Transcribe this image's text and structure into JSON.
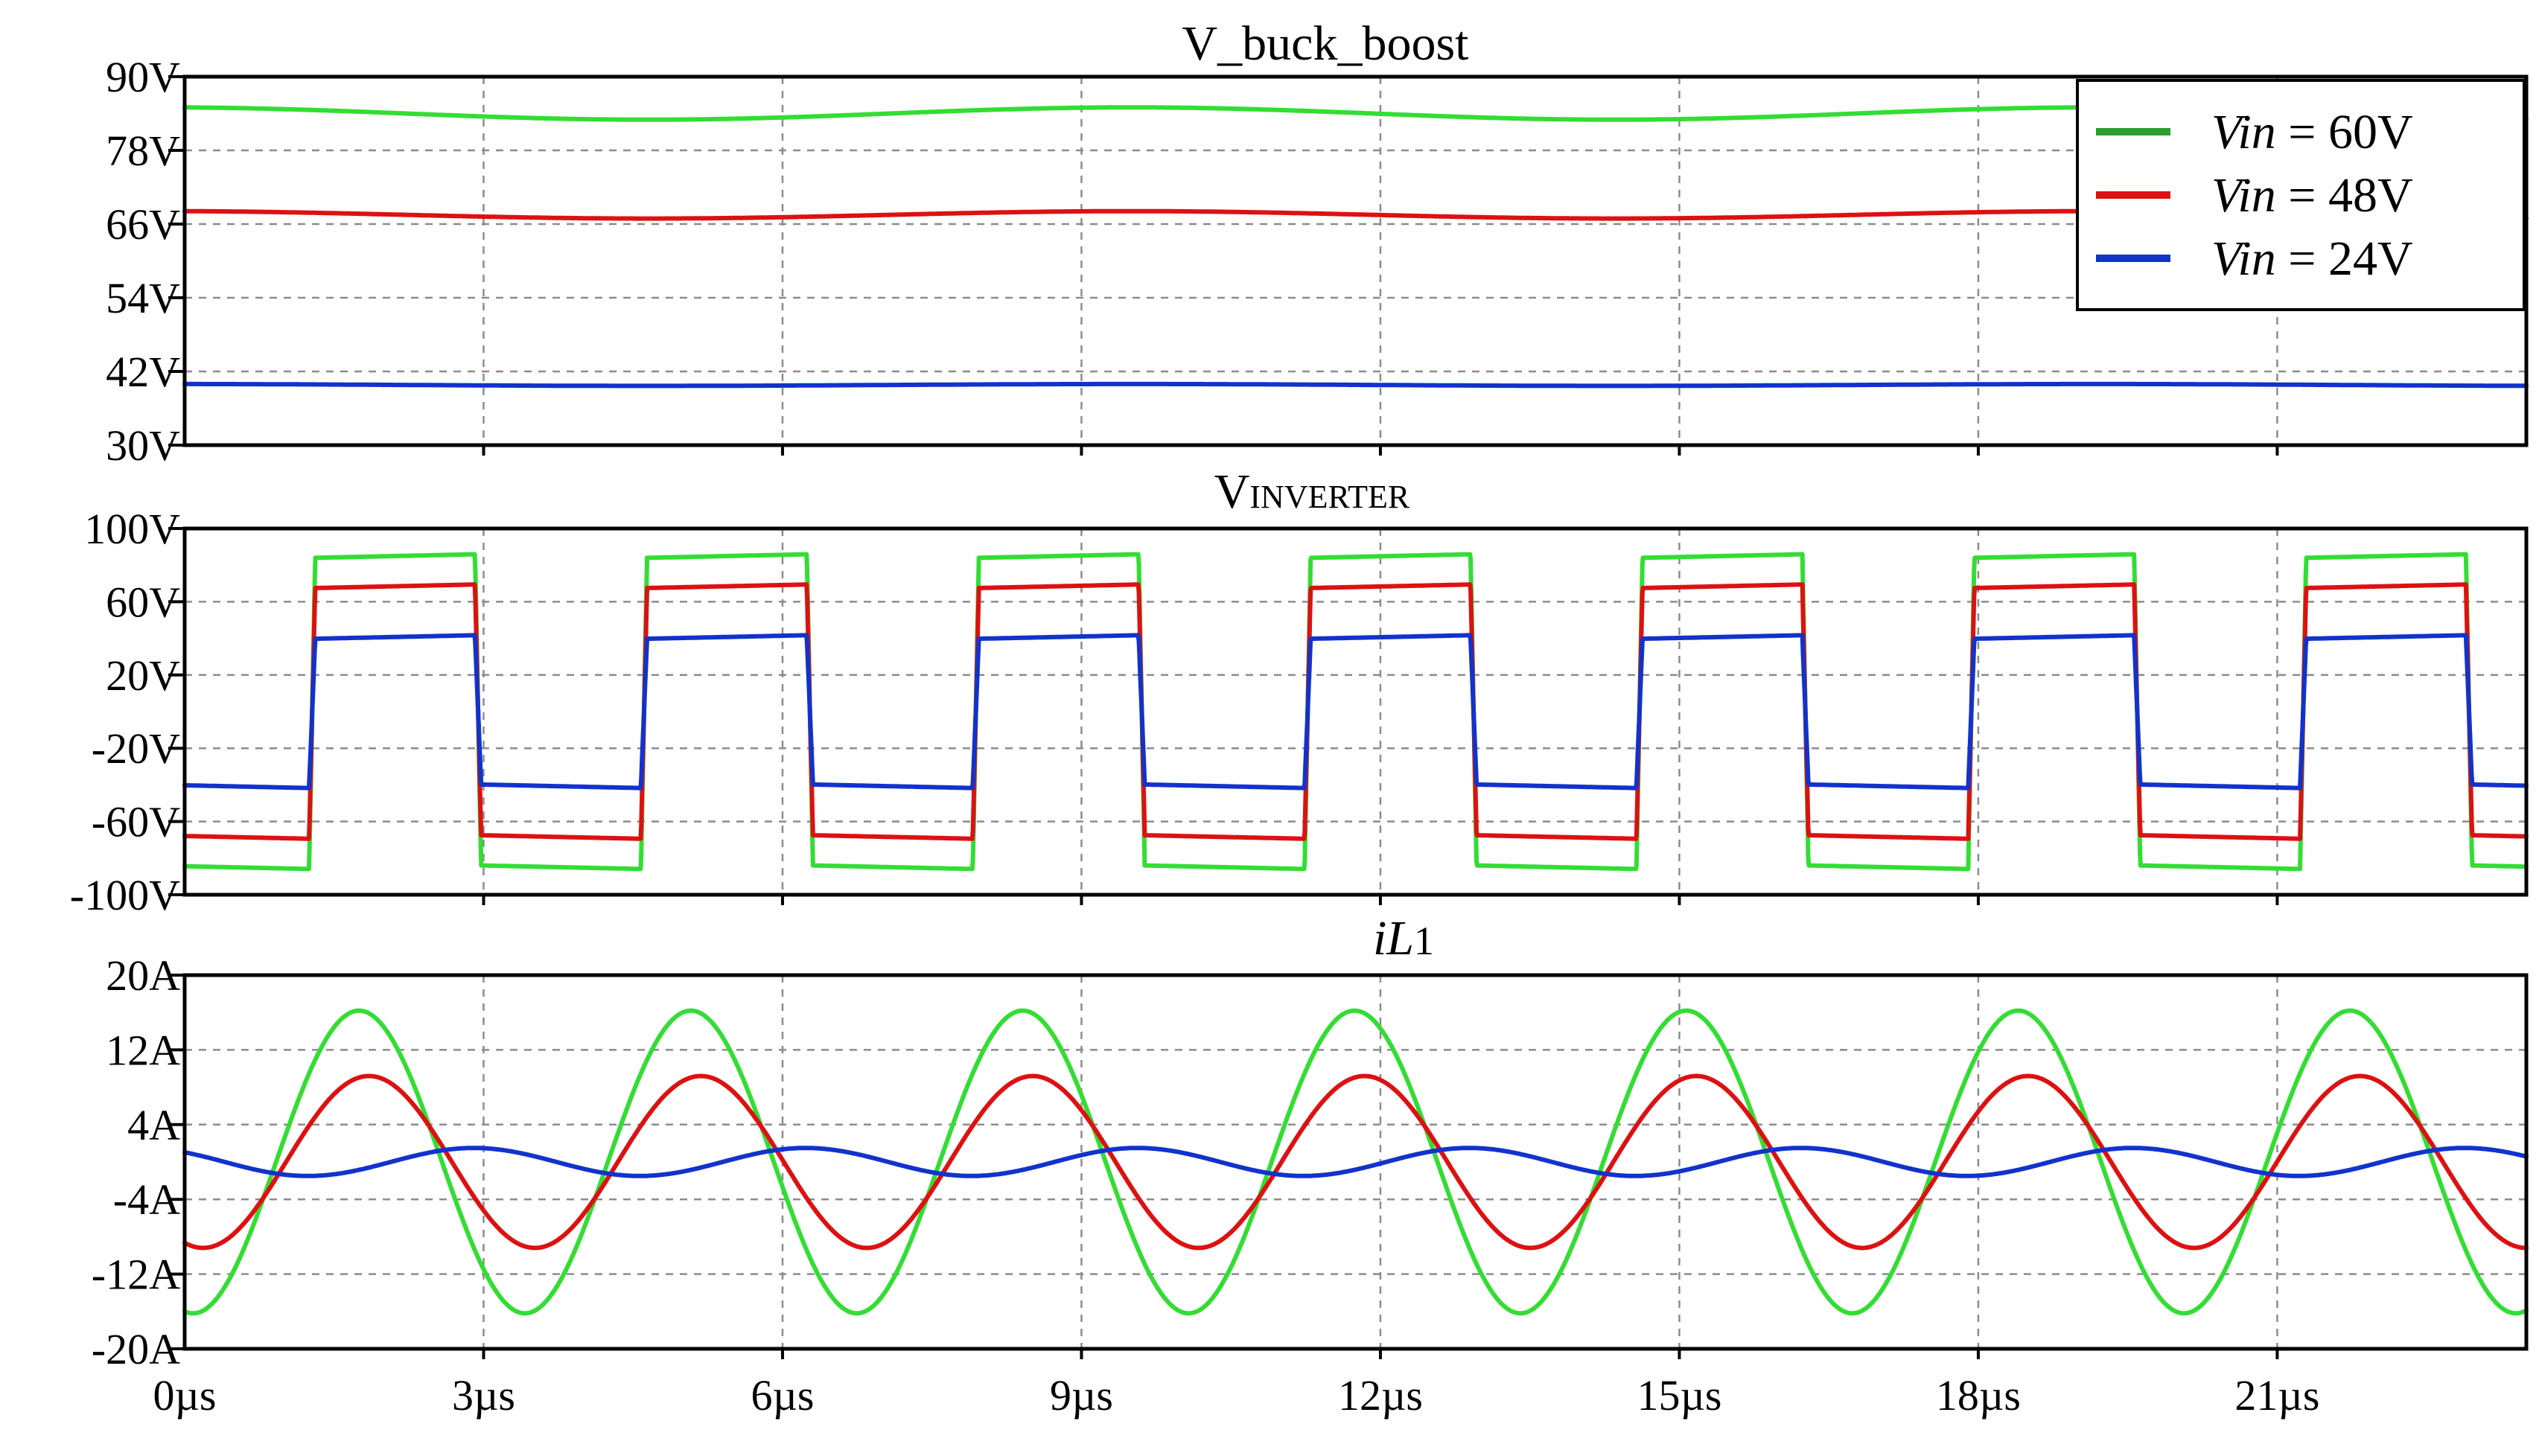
{
  "colors": {
    "green": "#33dd33",
    "red": "#dd1111",
    "blue": "#1133cc",
    "legend_green": "#2e9e2e"
  },
  "legend": {
    "entries": [
      {
        "var": "Vin",
        "rest": " = 60V",
        "color_key": "legend_green"
      },
      {
        "var": "Vin",
        "rest": " = 48V",
        "color_key": "red"
      },
      {
        "var": "Vin",
        "rest": " = 24V",
        "color_key": "blue"
      }
    ]
  },
  "chart_data": [
    {
      "type": "line",
      "title": "V_buck_boost",
      "xlim": [
        0,
        23.5
      ],
      "ylim": [
        30,
        90
      ],
      "yticks": [
        90,
        78,
        66,
        54,
        42,
        30
      ],
      "ytick_labels": [
        "90V",
        "78V",
        "66V",
        "54V",
        "42V",
        "30V"
      ],
      "xticks": [
        0,
        3,
        6,
        9,
        12,
        15,
        18,
        21
      ],
      "series": [
        {
          "name": "Vin = 60V",
          "color_key": "green",
          "kind": "dc",
          "mean": 84,
          "ripple": 1.0,
          "period": 9.7
        },
        {
          "name": "Vin = 48V",
          "color_key": "red",
          "kind": "dc",
          "mean": 67.5,
          "ripple": 0.6,
          "period": 9.7
        },
        {
          "name": "Vin = 24V",
          "color_key": "blue",
          "kind": "dc",
          "mean": 39.8,
          "ripple": 0.15,
          "period": 9.7
        }
      ]
    },
    {
      "type": "line",
      "title_main": "V",
      "title_sub": "INVERTER",
      "xlim": [
        0,
        23.5
      ],
      "ylim": [
        -100,
        100
      ],
      "yticks": [
        100,
        60,
        20,
        -20,
        -60,
        -100
      ],
      "ytick_labels": [
        "100V",
        "60V",
        "20V",
        "-20V",
        "-60V",
        "-100V"
      ],
      "xticks": [
        0,
        3,
        6,
        9,
        12,
        15,
        18,
        21
      ],
      "series": [
        {
          "name": "Vin = 60V",
          "color_key": "green",
          "kind": "square",
          "amp": 84,
          "period": 3.33,
          "phase": 1.25,
          "duty": 0.5
        },
        {
          "name": "Vin = 48V",
          "color_key": "red",
          "kind": "square",
          "amp": 67.5,
          "period": 3.33,
          "phase": 1.25,
          "duty": 0.5
        },
        {
          "name": "Vin = 24V",
          "color_key": "blue",
          "kind": "square",
          "amp": 39.8,
          "period": 3.33,
          "phase": 1.25,
          "duty": 0.5
        }
      ]
    },
    {
      "type": "line",
      "title_main": "iL",
      "title_sub": "1",
      "xlim": [
        0,
        23.5
      ],
      "ylim": [
        -20,
        20
      ],
      "yticks": [
        20,
        12,
        4,
        -4,
        -12,
        -20
      ],
      "ytick_labels": [
        "20A",
        "12A",
        "4A",
        "-4A",
        "-12A",
        "-20A"
      ],
      "xticks": [
        0,
        3,
        6,
        9,
        12,
        15,
        18,
        21
      ],
      "xtick_labels": [
        "0µs",
        "3µs",
        "6µs",
        "9µs",
        "12µs",
        "15µs",
        "18µs",
        "21µs"
      ],
      "series": [
        {
          "name": "Vin = 60V",
          "color_key": "green",
          "kind": "sine",
          "amp": 16.2,
          "period": 3.33,
          "peak_at": 1.75
        },
        {
          "name": "Vin = 48V",
          "color_key": "red",
          "kind": "sine",
          "amp": 9.2,
          "period": 3.33,
          "peak_at": 1.85
        },
        {
          "name": "Vin = 24V",
          "color_key": "blue",
          "kind": "sine",
          "amp": 1.5,
          "period": 3.33,
          "peak_at": 2.9,
          "offset": 0
        }
      ]
    }
  ]
}
